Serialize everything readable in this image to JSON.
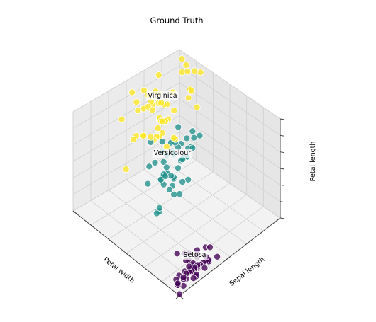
{
  "chart_data": {
    "type": "scatter",
    "title": "Ground Truth",
    "xlabel": "Petal width",
    "ylabel": "Sepal length",
    "zlabel": "Petal length",
    "grid": true,
    "colors": {
      "Setosa": "#440154",
      "Versicolour": "#21918c",
      "Virginica": "#fde725"
    },
    "annotations": [
      {
        "text": "Setosa",
        "x": 0.2,
        "y": 5.0,
        "z": 1.5
      },
      {
        "text": "Versicolour",
        "x": 1.3,
        "y": 5.9,
        "z": 4.3
      },
      {
        "text": "Virginica",
        "x": 2.0,
        "y": 6.6,
        "z": 5.6
      }
    ],
    "series": [
      {
        "name": "Setosa",
        "points": [
          [
            0.2,
            5.1,
            1.4
          ],
          [
            0.2,
            4.9,
            1.4
          ],
          [
            0.2,
            4.7,
            1.3
          ],
          [
            0.2,
            4.6,
            1.5
          ],
          [
            0.2,
            5.0,
            1.4
          ],
          [
            0.4,
            5.4,
            1.7
          ],
          [
            0.3,
            4.6,
            1.4
          ],
          [
            0.2,
            5.0,
            1.5
          ],
          [
            0.2,
            4.4,
            1.4
          ],
          [
            0.1,
            4.9,
            1.5
          ],
          [
            0.2,
            5.4,
            1.5
          ],
          [
            0.2,
            4.8,
            1.6
          ],
          [
            0.1,
            4.8,
            1.4
          ],
          [
            0.1,
            4.3,
            1.1
          ],
          [
            0.2,
            5.8,
            1.2
          ],
          [
            0.4,
            5.7,
            1.5
          ],
          [
            0.4,
            5.4,
            1.3
          ],
          [
            0.3,
            5.1,
            1.4
          ],
          [
            0.3,
            5.7,
            1.7
          ],
          [
            0.3,
            5.1,
            1.5
          ],
          [
            0.2,
            5.4,
            1.7
          ],
          [
            0.4,
            5.1,
            1.5
          ],
          [
            0.2,
            4.6,
            1.0
          ],
          [
            0.5,
            5.1,
            1.7
          ],
          [
            0.2,
            4.8,
            1.9
          ],
          [
            0.2,
            5.0,
            1.6
          ],
          [
            0.4,
            5.0,
            1.6
          ],
          [
            0.2,
            5.2,
            1.5
          ],
          [
            0.2,
            5.2,
            1.4
          ],
          [
            0.2,
            4.7,
            1.6
          ],
          [
            0.2,
            4.8,
            1.6
          ],
          [
            0.4,
            5.4,
            1.5
          ],
          [
            0.1,
            5.2,
            1.5
          ],
          [
            0.2,
            5.5,
            1.4
          ],
          [
            0.2,
            4.9,
            1.5
          ],
          [
            0.2,
            5.0,
            1.2
          ],
          [
            0.2,
            5.5,
            1.3
          ],
          [
            0.1,
            4.9,
            1.4
          ],
          [
            0.2,
            4.4,
            1.3
          ],
          [
            0.2,
            5.1,
            1.5
          ],
          [
            0.3,
            5.0,
            1.3
          ],
          [
            0.3,
            4.5,
            1.3
          ],
          [
            0.2,
            4.4,
            1.3
          ],
          [
            0.6,
            5.0,
            1.6
          ],
          [
            0.4,
            5.1,
            1.9
          ],
          [
            0.3,
            4.8,
            1.4
          ],
          [
            0.2,
            5.1,
            1.6
          ],
          [
            0.2,
            4.6,
            1.4
          ],
          [
            0.2,
            5.3,
            1.5
          ],
          [
            0.2,
            5.0,
            1.4
          ]
        ]
      },
      {
        "name": "Versicolour",
        "points": [
          [
            1.4,
            7.0,
            4.7
          ],
          [
            1.5,
            6.4,
            4.5
          ],
          [
            1.5,
            6.9,
            4.9
          ],
          [
            1.3,
            5.5,
            4.0
          ],
          [
            1.5,
            6.5,
            4.6
          ],
          [
            1.3,
            5.7,
            4.5
          ],
          [
            1.6,
            6.3,
            4.7
          ],
          [
            1.0,
            4.9,
            3.3
          ],
          [
            1.3,
            6.6,
            4.6
          ],
          [
            1.4,
            5.2,
            3.9
          ],
          [
            1.0,
            5.0,
            3.5
          ],
          [
            1.5,
            5.9,
            4.2
          ],
          [
            1.0,
            6.0,
            4.0
          ],
          [
            1.4,
            6.1,
            4.7
          ],
          [
            1.3,
            5.6,
            3.6
          ],
          [
            1.4,
            6.7,
            4.4
          ],
          [
            1.5,
            5.6,
            4.5
          ],
          [
            1.0,
            5.8,
            4.1
          ],
          [
            1.5,
            6.2,
            4.5
          ],
          [
            1.1,
            5.6,
            3.9
          ],
          [
            1.8,
            5.9,
            4.8
          ],
          [
            1.3,
            6.1,
            4.0
          ],
          [
            1.5,
            6.3,
            4.9
          ],
          [
            1.2,
            6.1,
            4.7
          ],
          [
            1.3,
            6.4,
            4.3
          ],
          [
            1.4,
            6.6,
            4.4
          ],
          [
            1.4,
            6.8,
            4.8
          ],
          [
            1.7,
            6.7,
            5.0
          ],
          [
            1.5,
            6.0,
            4.5
          ],
          [
            1.0,
            5.7,
            3.5
          ],
          [
            1.1,
            5.5,
            3.8
          ],
          [
            1.0,
            5.5,
            3.7
          ],
          [
            1.2,
            5.8,
            3.9
          ],
          [
            1.6,
            6.0,
            5.1
          ],
          [
            1.5,
            5.4,
            4.5
          ],
          [
            1.6,
            6.0,
            4.5
          ],
          [
            1.5,
            6.7,
            4.7
          ],
          [
            1.3,
            6.3,
            4.4
          ],
          [
            1.3,
            5.6,
            4.1
          ],
          [
            1.3,
            5.5,
            4.0
          ],
          [
            1.2,
            5.5,
            4.4
          ],
          [
            1.4,
            6.1,
            4.6
          ],
          [
            1.2,
            5.8,
            4.0
          ],
          [
            1.0,
            5.0,
            3.3
          ],
          [
            1.3,
            5.6,
            4.2
          ],
          [
            1.2,
            5.7,
            4.2
          ],
          [
            1.3,
            5.7,
            4.2
          ],
          [
            1.3,
            6.2,
            4.3
          ],
          [
            1.1,
            5.1,
            3.0
          ],
          [
            1.3,
            5.7,
            4.1
          ]
        ]
      },
      {
        "name": "Virginica",
        "points": [
          [
            2.5,
            6.3,
            6.0
          ],
          [
            1.9,
            5.8,
            5.1
          ],
          [
            2.1,
            7.1,
            5.9
          ],
          [
            1.8,
            6.3,
            5.6
          ],
          [
            2.2,
            6.5,
            5.8
          ],
          [
            2.1,
            7.6,
            6.6
          ],
          [
            1.7,
            4.9,
            4.5
          ],
          [
            1.8,
            7.3,
            6.3
          ],
          [
            1.8,
            6.7,
            5.8
          ],
          [
            2.5,
            7.2,
            6.1
          ],
          [
            2.0,
            6.5,
            5.1
          ],
          [
            1.9,
            6.4,
            5.3
          ],
          [
            2.1,
            6.8,
            5.5
          ],
          [
            2.0,
            5.7,
            5.0
          ],
          [
            2.4,
            5.8,
            5.1
          ],
          [
            2.3,
            6.4,
            5.3
          ],
          [
            1.8,
            6.5,
            5.5
          ],
          [
            2.2,
            7.7,
            6.7
          ],
          [
            2.3,
            7.7,
            6.9
          ],
          [
            1.5,
            6.0,
            5.0
          ],
          [
            2.3,
            6.9,
            5.7
          ],
          [
            2.0,
            5.6,
            4.9
          ],
          [
            2.0,
            7.7,
            6.7
          ],
          [
            1.8,
            6.3,
            4.9
          ],
          [
            2.1,
            6.7,
            5.7
          ],
          [
            1.8,
            7.2,
            6.0
          ],
          [
            1.8,
            6.2,
            4.8
          ],
          [
            1.8,
            6.1,
            4.9
          ],
          [
            2.1,
            6.4,
            5.6
          ],
          [
            1.6,
            7.2,
            5.8
          ],
          [
            1.9,
            7.4,
            6.1
          ],
          [
            2.0,
            7.9,
            6.4
          ],
          [
            2.2,
            6.4,
            5.6
          ],
          [
            1.5,
            6.3,
            5.1
          ],
          [
            1.4,
            6.1,
            5.6
          ],
          [
            2.3,
            7.7,
            6.1
          ],
          [
            2.4,
            6.3,
            5.6
          ],
          [
            1.8,
            6.4,
            5.5
          ],
          [
            1.8,
            6.0,
            4.8
          ],
          [
            2.1,
            6.9,
            5.4
          ],
          [
            2.4,
            6.7,
            5.6
          ],
          [
            2.3,
            6.9,
            5.1
          ],
          [
            1.9,
            5.8,
            5.1
          ],
          [
            2.3,
            6.8,
            5.9
          ],
          [
            2.5,
            6.7,
            5.7
          ],
          [
            2.3,
            6.7,
            5.2
          ],
          [
            1.9,
            6.3,
            5.0
          ],
          [
            2.0,
            6.5,
            5.2
          ],
          [
            2.3,
            6.2,
            5.4
          ],
          [
            1.8,
            5.9,
            5.1
          ]
        ]
      }
    ],
    "ranges": {
      "x": [
        0.1,
        2.5
      ],
      "y": [
        4.3,
        7.9
      ],
      "z": [
        1.0,
        6.9
      ]
    },
    "view": {
      "elev": 48,
      "azim": 134
    }
  }
}
